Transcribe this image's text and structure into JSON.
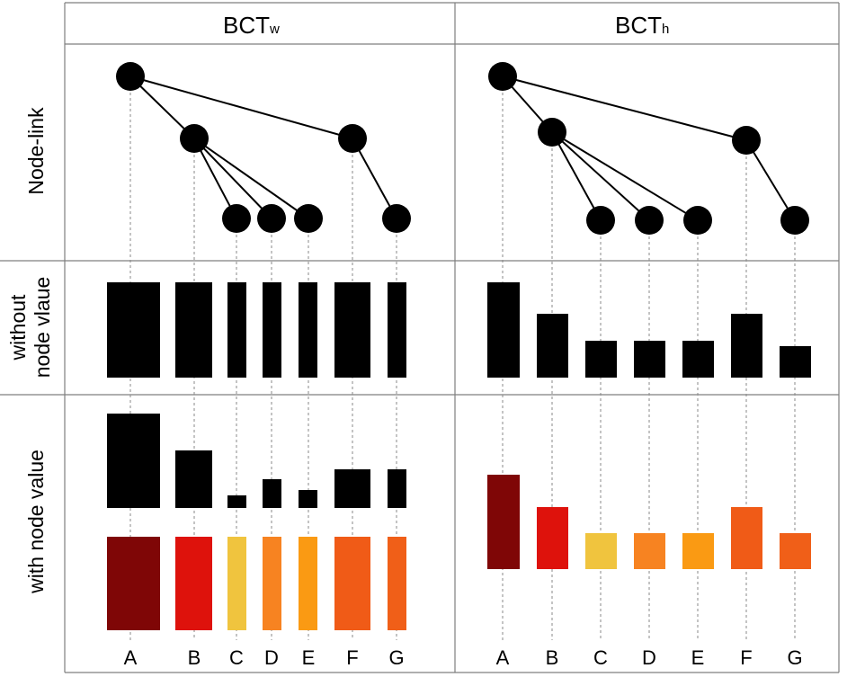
{
  "panels": [
    {
      "id": "w",
      "title_main": "BCT",
      "title_sub": "w"
    },
    {
      "id": "h",
      "title_main": "BCT",
      "title_sub": "h"
    }
  ],
  "row_labels": {
    "node_link": "Node-link",
    "without": [
      "without",
      "node vlaue"
    ],
    "with": "with node value"
  },
  "nodes": [
    "A",
    "B",
    "C",
    "D",
    "E",
    "F",
    "G"
  ],
  "tree": {
    "edges": [
      [
        "A",
        "B"
      ],
      [
        "A",
        "F"
      ],
      [
        "B",
        "C"
      ],
      [
        "B",
        "D"
      ],
      [
        "B",
        "E"
      ],
      [
        "F",
        "G"
      ]
    ]
  },
  "colors": {
    "A": "#7f0606",
    "B": "#de120c",
    "C": "#f0c43e",
    "D": "#f78321",
    "E": "#fa9a13",
    "F": "#f05b17",
    "G": "#f05f18"
  }
}
